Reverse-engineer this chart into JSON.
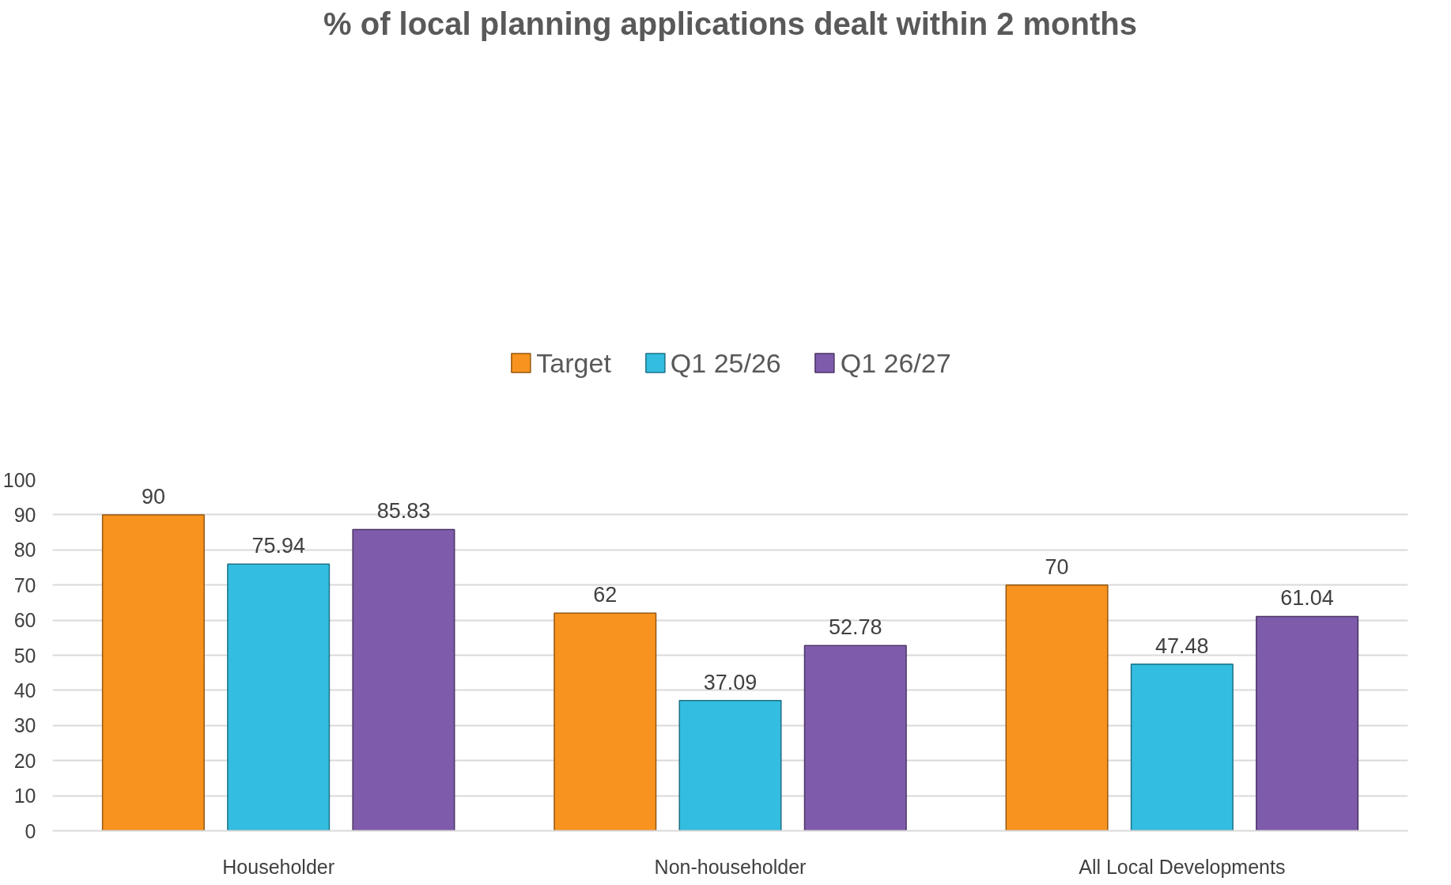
{
  "chart_data": {
    "type": "bar",
    "title": "% of local planning applications dealt within 2 months",
    "categories": [
      "Householder",
      "Non-householder",
      "All Local Developments"
    ],
    "series": [
      {
        "name": "Target",
        "color": "#f7931e",
        "values": [
          90,
          62,
          70
        ]
      },
      {
        "name": "Q1 25/26",
        "color": "#33bde0",
        "values": [
          75.94,
          37.09,
          47.48
        ]
      },
      {
        "name": "Q1 26/27",
        "color": "#7f5bab",
        "values": [
          85.83,
          52.78,
          61.04
        ]
      }
    ],
    "ylim": [
      0,
      100
    ],
    "yticks": [
      0,
      10,
      20,
      30,
      40,
      50,
      60,
      70,
      80,
      90,
      100
    ],
    "grid": "y",
    "legend": "top",
    "data_labels": true
  }
}
